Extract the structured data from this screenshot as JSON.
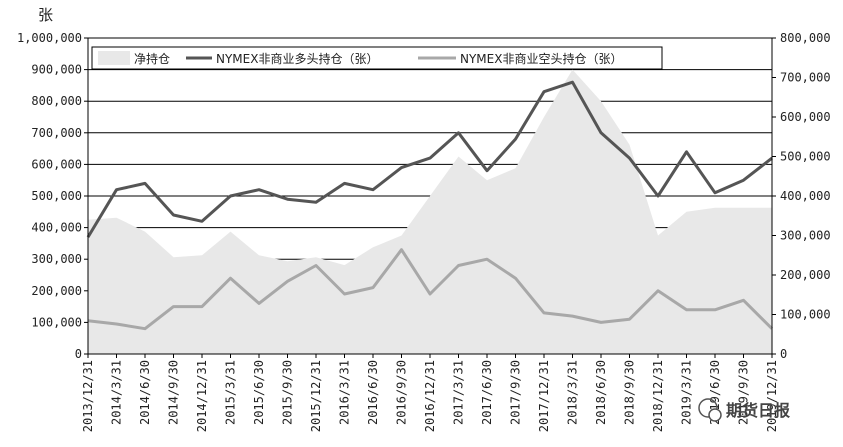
{
  "chart_data": {
    "type": "area",
    "unit_label": "张",
    "left_axis": {
      "min": 0,
      "max": 1000000,
      "ticks": [
        "1,000,000",
        "900,000",
        "800,000",
        "700,000",
        "600,000",
        "500,000",
        "400,000",
        "300,000",
        "200,000",
        "100,000",
        "0"
      ]
    },
    "right_axis": {
      "min": 0,
      "max": 800000,
      "ticks": [
        "800,000",
        "700,000",
        "600,000",
        "500,000",
        "400,000",
        "300,000",
        "200,000",
        "100,000",
        "0"
      ]
    },
    "categories": [
      "2013/12/31",
      "2014/3/31",
      "2014/6/30",
      "2014/9/30",
      "2014/12/31",
      "2015/3/31",
      "2015/6/30",
      "2015/9/30",
      "2015/12/31",
      "2016/3/31",
      "2016/6/30",
      "2016/9/30",
      "2016/12/31",
      "2017/3/31",
      "2017/6/30",
      "2017/9/30",
      "2017/12/31",
      "2018/3/31",
      "2018/6/30",
      "2018/9/30",
      "2018/12/31",
      "2019/3/31",
      "2019/6/30",
      "2019/9/30",
      "2019/12/31"
    ],
    "legend": [
      "净持仓",
      "NYMEX非商业多头持仓（张）",
      "NYMEX非商业空头持仓（张）"
    ],
    "series": [
      {
        "name": "净持仓",
        "axis": "right",
        "kind": "area",
        "color": "#e8e8e8",
        "values": [
          340000,
          345000,
          310000,
          245000,
          250000,
          310000,
          250000,
          235000,
          245000,
          225000,
          270000,
          300000,
          400000,
          500000,
          440000,
          470000,
          600000,
          720000,
          640000,
          530000,
          300000,
          360000,
          370000,
          370000,
          370000
        ]
      },
      {
        "name": "NYMEX非商业多头持仓（张）",
        "axis": "left",
        "kind": "line",
        "color": "#555555",
        "values": [
          370000,
          520000,
          540000,
          440000,
          420000,
          500000,
          520000,
          490000,
          480000,
          540000,
          520000,
          590000,
          620000,
          700000,
          580000,
          680000,
          830000,
          860000,
          700000,
          620000,
          500000,
          640000,
          510000,
          550000,
          620000
        ]
      },
      {
        "name": "NYMEX非商业空头持仓（张）",
        "axis": "left",
        "kind": "line",
        "color": "#a8a8a8",
        "values": [
          105000,
          95000,
          80000,
          150000,
          150000,
          240000,
          160000,
          230000,
          280000,
          190000,
          210000,
          330000,
          190000,
          280000,
          300000,
          240000,
          130000,
          120000,
          100000,
          110000,
          200000,
          140000,
          140000,
          170000,
          80000
        ]
      }
    ]
  },
  "watermark": "期货日报"
}
